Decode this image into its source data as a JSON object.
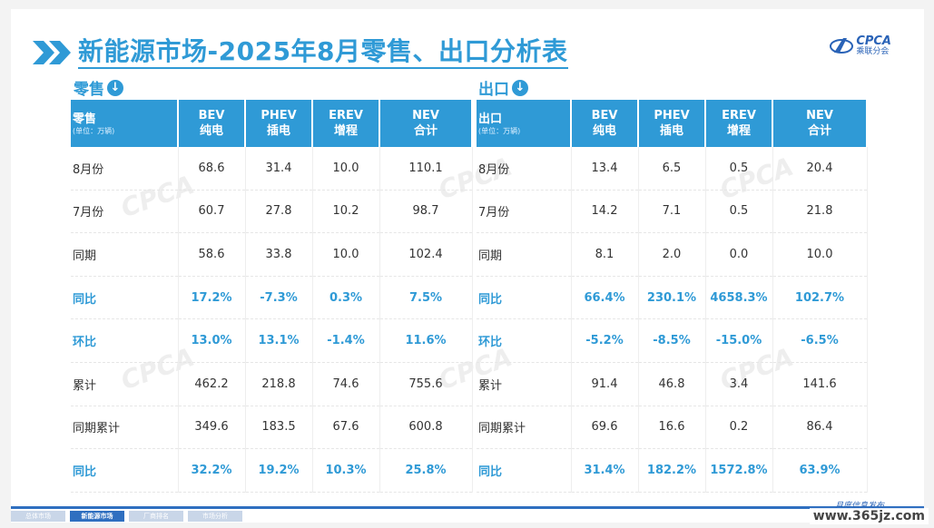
{
  "header": {
    "title": "新能源市场-2025年8月零售、出口分析表",
    "logo_text": "CPCA",
    "logo_sub": "乘联分会"
  },
  "retail": {
    "section_label": "零售",
    "columns": [
      {
        "line1": "零售",
        "unit": "(单位：万辆)"
      },
      {
        "line1": "BEV",
        "line2": "纯电"
      },
      {
        "line1": "PHEV",
        "line2": "插电"
      },
      {
        "line1": "EREV",
        "line2": "增程"
      },
      {
        "line1": "NEV",
        "line2": "合计"
      }
    ],
    "rows": [
      [
        "8月份",
        "68.6",
        "31.4",
        "10.0",
        "110.1"
      ],
      [
        "7月份",
        "60.7",
        "27.8",
        "10.2",
        "98.7"
      ],
      [
        "同期",
        "58.6",
        "33.8",
        "10.0",
        "102.4"
      ],
      [
        "同比",
        "17.2%",
        "-7.3%",
        "0.3%",
        "7.5%"
      ],
      [
        "环比",
        "13.0%",
        "13.1%",
        "-1.4%",
        "11.6%"
      ],
      [
        "累计",
        "462.2",
        "218.8",
        "74.6",
        "755.6"
      ],
      [
        "同期累计",
        "349.6",
        "183.5",
        "67.6",
        "600.8"
      ],
      [
        "同比",
        "32.2%",
        "19.2%",
        "10.3%",
        "25.8%"
      ]
    ]
  },
  "export": {
    "section_label": "出口",
    "columns": [
      {
        "line1": "出口",
        "unit": "(单位：万辆)"
      },
      {
        "line1": "BEV",
        "line2": "纯电"
      },
      {
        "line1": "PHEV",
        "line2": "插电"
      },
      {
        "line1": "EREV",
        "line2": "增程"
      },
      {
        "line1": "NEV",
        "line2": "合计"
      }
    ],
    "rows": [
      [
        "8月份",
        "13.4",
        "6.5",
        "0.5",
        "20.4"
      ],
      [
        "7月份",
        "14.2",
        "7.1",
        "0.5",
        "21.8"
      ],
      [
        "同期",
        "8.1",
        "2.0",
        "0.0",
        "10.0"
      ],
      [
        "同比",
        "66.4%",
        "230.1%",
        "4658.3%",
        "102.7%"
      ],
      [
        "环比",
        "-5.2%",
        "-8.5%",
        "-15.0%",
        "-6.5%"
      ],
      [
        "累计",
        "91.4",
        "46.8",
        "3.4",
        "141.6"
      ],
      [
        "同期累计",
        "69.6",
        "16.6",
        "0.2",
        "86.4"
      ],
      [
        "同比",
        "31.4%",
        "182.2%",
        "1572.8%",
        "63.9%"
      ]
    ]
  },
  "highlight_rows": [
    3,
    4,
    7
  ],
  "footer": {
    "tabs": [
      "总体市场",
      "新能源市场",
      "厂商排名",
      "市场分析"
    ],
    "active_tab": 1,
    "note": "月度信息发布"
  },
  "site_watermark": "www.365jz.com",
  "colors": {
    "accent": "#2f9ad6",
    "footer": "#2f6fc0"
  }
}
